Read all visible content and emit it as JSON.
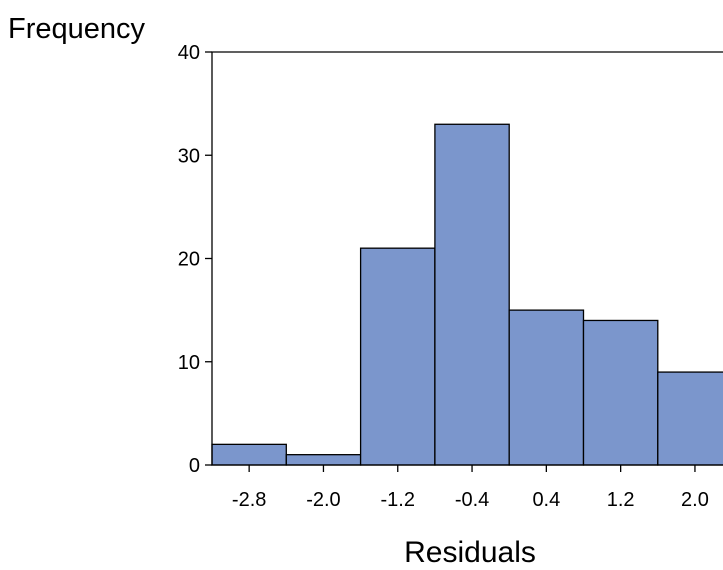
{
  "chart_data": {
    "type": "bar",
    "ylabel": "Frequency",
    "xlabel": "Residuals",
    "categories": [
      "-2.8",
      "-2.0",
      "-1.2",
      "-0.4",
      "0.4",
      "1.2",
      "2.0"
    ],
    "values": [
      2,
      1,
      21,
      33,
      15,
      14,
      9
    ],
    "yticks": [
      "0",
      "10",
      "20",
      "30",
      "40"
    ],
    "ylim": [
      0,
      40
    ],
    "bar_color": "#7b96cc",
    "bar_edge_color": "#000000",
    "grid": false
  }
}
